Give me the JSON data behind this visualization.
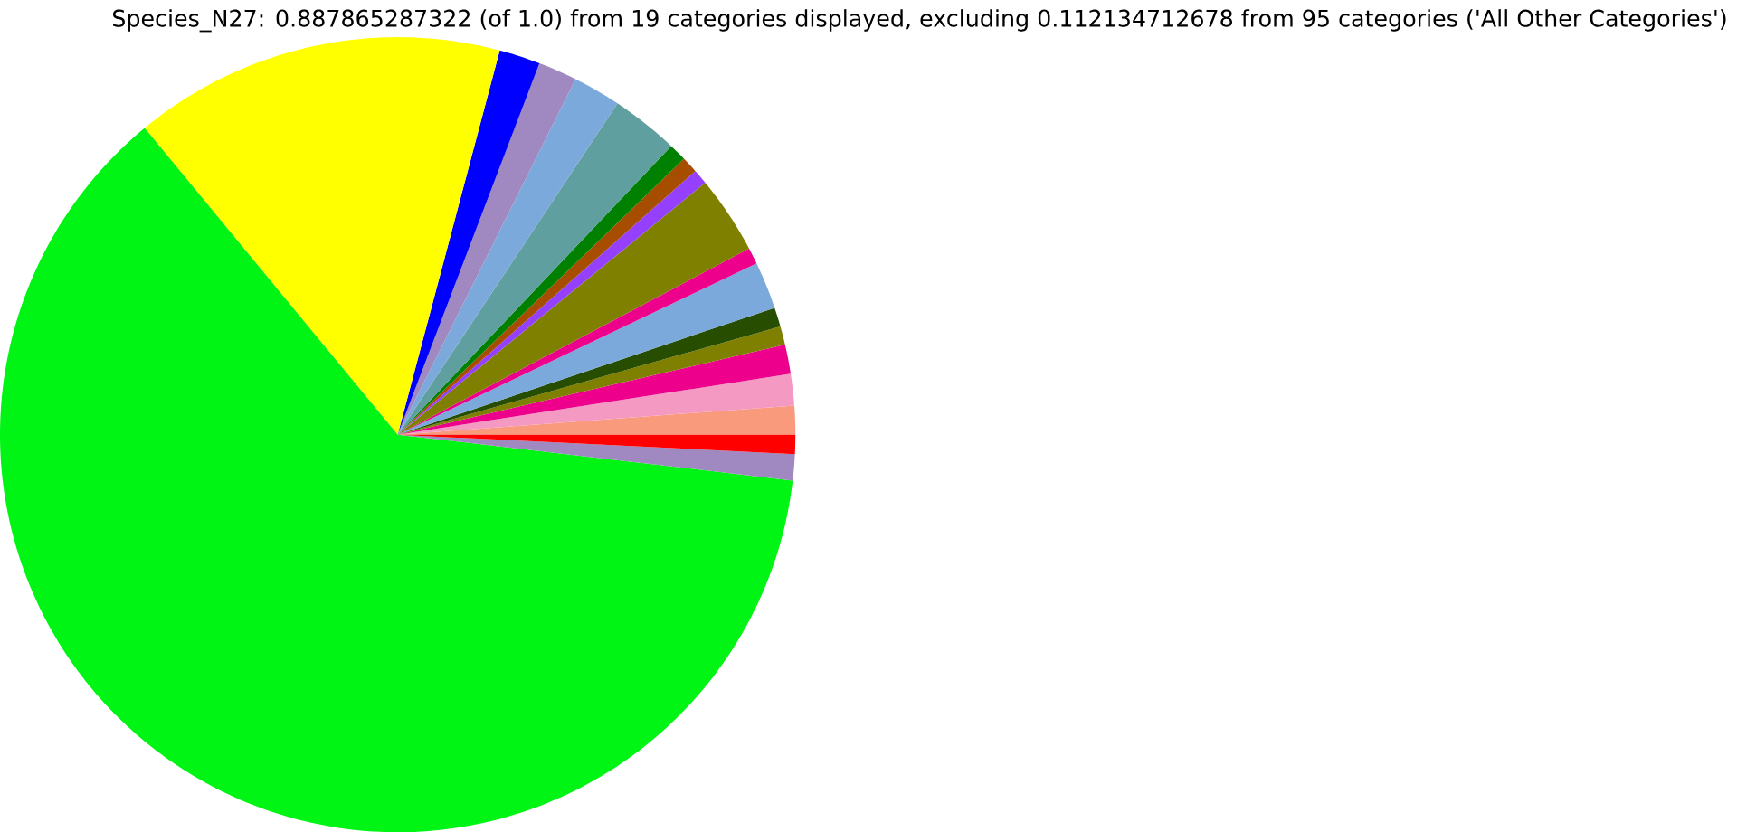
{
  "chart_data": {
    "type": "pie",
    "title": "Species_N27: 0.887865287322 (of 1.0) from 19 categories displayed, excluding 0.112134712678 from 95 categories ('All Other Categories')",
    "categories": [
      null,
      null,
      null,
      null,
      null,
      null,
      null,
      null,
      null,
      null,
      null,
      null,
      null,
      null,
      null,
      null,
      null,
      null,
      null
    ],
    "values": [
      1.17,
      1.28,
      1.19,
      0.75,
      0.78,
      1.92,
      0.67,
      3.17,
      0.61,
      0.67,
      0.72,
      2.75,
      1.94,
      1.58,
      1.67,
      15.11,
      62.18,
      1.06,
      0.78
    ],
    "colors": [
      "#f99a7c",
      "#f49ac2",
      "#ec008c",
      "#808000",
      "#264d00",
      "#7ba9dc",
      "#ec008c",
      "#808000",
      "#9440fe",
      "#a64d00",
      "#008000",
      "#5f9f9f",
      "#7ba9dc",
      "#a088c0",
      "#0000ff",
      "#ffff00",
      "#00f414",
      "#a088c0",
      "#ff0000"
    ]
  }
}
